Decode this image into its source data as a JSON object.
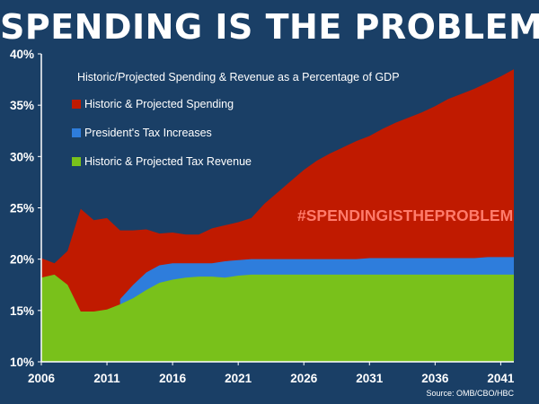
{
  "headline": "SPENDING IS THE PROBLEM",
  "chart_data": {
    "type": "area",
    "title": "SPENDING IS THE PROBLEM",
    "subtitle": "Historic/Projected Spending & Revenue as a Percentage of GDP",
    "ylim": [
      10,
      40
    ],
    "xlim": [
      2006,
      2042
    ],
    "y_ticks": [
      "10%",
      "15%",
      "20%",
      "25%",
      "30%",
      "35%",
      "40%"
    ],
    "x_ticks": [
      "2006",
      "2011",
      "2016",
      "2021",
      "2026",
      "2031",
      "2036",
      "2041"
    ],
    "series": [
      {
        "name": "Historic & Projected Spending",
        "color": "#c01a00",
        "x": [
          2006,
          2007,
          2008,
          2009,
          2010,
          2011,
          2012,
          2013,
          2014,
          2015,
          2016,
          2017,
          2018,
          2019,
          2020,
          2021,
          2022,
          2023,
          2024,
          2025,
          2026,
          2027,
          2028,
          2029,
          2030,
          2031,
          2032,
          2033,
          2034,
          2035,
          2036,
          2037,
          2038,
          2039,
          2040,
          2041,
          2042
        ],
        "values": [
          20.1,
          19.6,
          20.8,
          24.9,
          23.8,
          24.0,
          22.8,
          22.8,
          22.9,
          22.5,
          22.6,
          22.4,
          22.4,
          23.0,
          23.3,
          23.6,
          24.0,
          25.4,
          26.5,
          27.6,
          28.7,
          29.6,
          30.3,
          30.9,
          31.5,
          32.0,
          32.7,
          33.3,
          33.8,
          34.3,
          34.9,
          35.6,
          36.1,
          36.6,
          37.2,
          37.8,
          38.5
        ]
      },
      {
        "name": "President's Tax Increases",
        "color": "#2e7ddc",
        "x": [
          2012,
          2013,
          2014,
          2015,
          2016,
          2017,
          2018,
          2019,
          2020,
          2021,
          2022,
          2023,
          2024,
          2025,
          2026,
          2027,
          2028,
          2029,
          2030,
          2031,
          2032,
          2033,
          2034,
          2035,
          2036,
          2037,
          2038,
          2039,
          2040,
          2041,
          2042
        ],
        "values": [
          16.1,
          17.5,
          18.7,
          19.4,
          19.6,
          19.6,
          19.6,
          19.6,
          19.8,
          19.9,
          20.0,
          20.0,
          20.0,
          20.0,
          20.0,
          20.0,
          20.0,
          20.0,
          20.0,
          20.1,
          20.1,
          20.1,
          20.1,
          20.1,
          20.1,
          20.1,
          20.1,
          20.1,
          20.2,
          20.2,
          20.2
        ]
      },
      {
        "name": "Historic & Projected Tax Revenue",
        "color": "#79c11b",
        "x": [
          2006,
          2007,
          2008,
          2009,
          2010,
          2011,
          2012,
          2013,
          2014,
          2015,
          2016,
          2017,
          2018,
          2019,
          2020,
          2021,
          2022,
          2023,
          2024,
          2025,
          2026,
          2027,
          2028,
          2029,
          2030,
          2031,
          2032,
          2033,
          2034,
          2035,
          2036,
          2037,
          2038,
          2039,
          2040,
          2041,
          2042
        ],
        "values": [
          18.2,
          18.5,
          17.5,
          14.9,
          14.9,
          15.1,
          15.6,
          16.2,
          17.0,
          17.7,
          18.0,
          18.2,
          18.3,
          18.3,
          18.2,
          18.4,
          18.5,
          18.5,
          18.5,
          18.5,
          18.5,
          18.5,
          18.5,
          18.5,
          18.5,
          18.5,
          18.5,
          18.5,
          18.5,
          18.5,
          18.5,
          18.5,
          18.5,
          18.5,
          18.5,
          18.5,
          18.5
        ]
      }
    ],
    "legend": [
      {
        "label": "Historic & Projected Spending",
        "color": "#c01a00"
      },
      {
        "label": "President's Tax Increases",
        "color": "#2e7ddc"
      },
      {
        "label": "Historic & Projected Tax Revenue",
        "color": "#79c11b"
      }
    ],
    "annotation": "#SPENDINGISTHEPROBLEM",
    "source": "Source: OMB/CBO/HBC",
    "grid": false,
    "legend_position": "top-left"
  },
  "colors": {
    "background": "#1a3f66",
    "axis": "#ffffff",
    "annotation": "#ff7b6b"
  }
}
